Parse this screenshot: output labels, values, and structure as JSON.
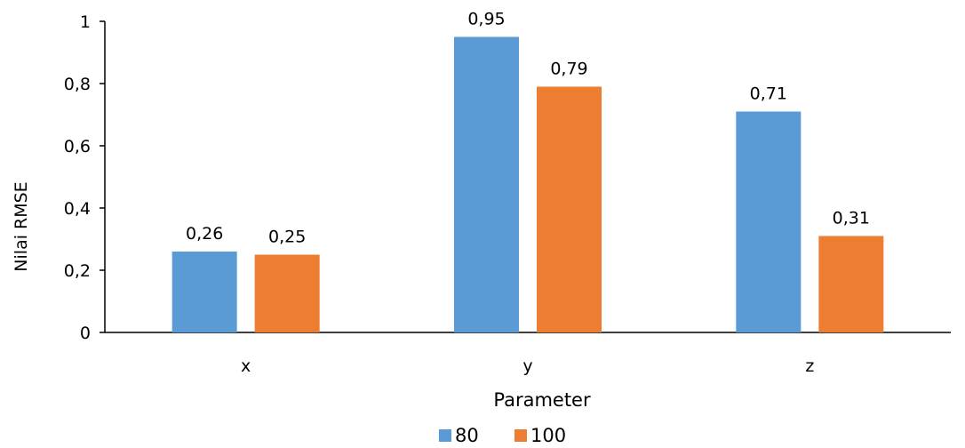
{
  "chart_data": {
    "type": "bar",
    "xlabel": "Parameter",
    "ylabel": "Nilai RMSE",
    "categories": [
      "x",
      "y",
      "z"
    ],
    "series": [
      {
        "name": "80",
        "values": [
          0.26,
          0.95,
          0.71
        ],
        "labels": [
          "0,26",
          "0,95",
          "0,71"
        ],
        "color": "#5B9BD5"
      },
      {
        "name": "100",
        "values": [
          0.25,
          0.79,
          0.31
        ],
        "labels": [
          "0,25",
          "0,79",
          "0,31"
        ],
        "color": "#ED7D31"
      }
    ],
    "ylim": [
      0,
      1
    ],
    "yticks": [
      {
        "value": 0,
        "label": "0"
      },
      {
        "value": 0.2,
        "label": "0,2"
      },
      {
        "value": 0.4,
        "label": "0,4"
      },
      {
        "value": 0.6,
        "label": "0,6"
      },
      {
        "value": 0.8,
        "label": "0,8"
      },
      {
        "value": 1,
        "label": "1"
      }
    ],
    "grid": false,
    "legend_position": "bottom"
  }
}
